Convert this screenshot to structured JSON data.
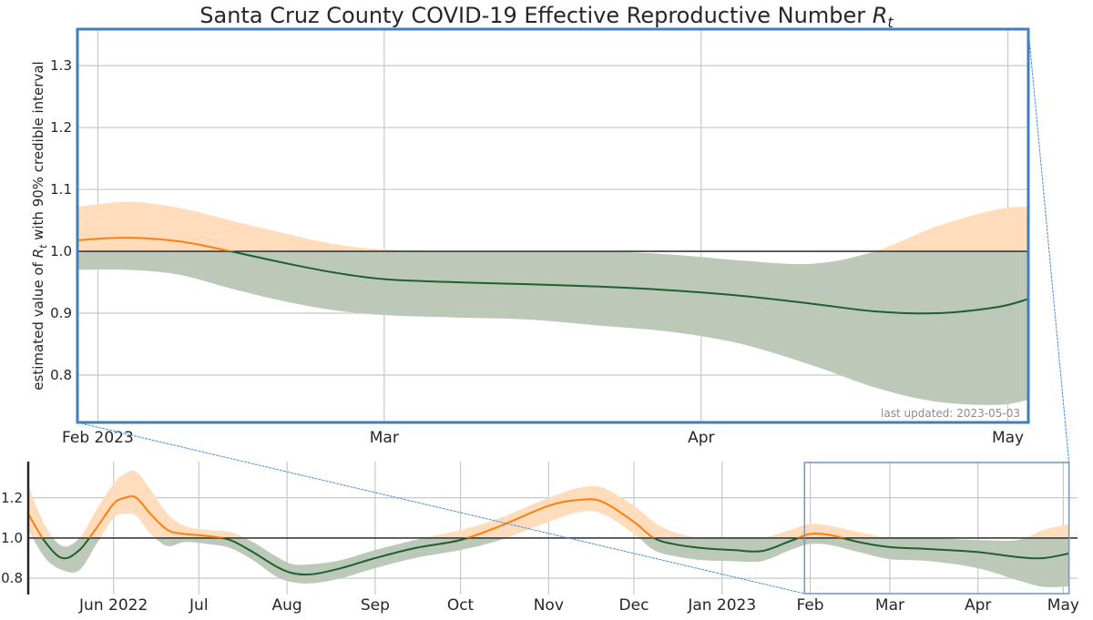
{
  "chart_data": [
    {
      "id": "detail",
      "type": "area",
      "title": "Santa Cruz County COVID-19 Effective Reproductive Number",
      "title_math": "R",
      "title_math_sub": "t",
      "ylabel_prefix": "estimated value of ",
      "ylabel_math": "R",
      "ylabel_math_sub": "t",
      "ylabel_suffix": " with 90% credible interval",
      "annotation": "last updated: 2023-05-03",
      "xlim": [
        "2023-01-30",
        "2023-05-03"
      ],
      "ylim": [
        0.7235,
        1.359
      ],
      "yticks": [
        0.8,
        0.9,
        1.0,
        1.1,
        1.2,
        1.3
      ],
      "ytick_labels": [
        "0.8",
        "0.9",
        "1.0",
        "1.1",
        "1.2",
        "1.3"
      ],
      "xticks": [
        {
          "date": "2023-02-01",
          "label": "Feb 2023"
        },
        {
          "date": "2023-03-01",
          "label": "Mar"
        },
        {
          "date": "2023-04-01",
          "label": "Apr"
        },
        {
          "date": "2023-05-01",
          "label": "May"
        }
      ],
      "reference_line": 1.0,
      "grid": true,
      "series": [
        {
          "name": "Rt median",
          "x": [
            "2023-01-30",
            "2023-02-04",
            "2023-02-09",
            "2023-02-14",
            "2023-02-19",
            "2023-02-24",
            "2023-03-01",
            "2023-03-08",
            "2023-03-15",
            "2023-03-22",
            "2023-03-29",
            "2023-04-05",
            "2023-04-12",
            "2023-04-18",
            "2023-04-24",
            "2023-04-30",
            "2023-05-03"
          ],
          "y": [
            1.018,
            1.022,
            1.016,
            1.0,
            0.982,
            0.966,
            0.955,
            0.95,
            0.947,
            0.943,
            0.937,
            0.928,
            0.915,
            0.903,
            0.9,
            0.91,
            0.923
          ]
        },
        {
          "name": "90% CI upper",
          "x": [
            "2023-01-30",
            "2023-02-04",
            "2023-02-09",
            "2023-02-14",
            "2023-02-19",
            "2023-02-24",
            "2023-03-01",
            "2023-03-08",
            "2023-03-15",
            "2023-03-22",
            "2023-03-29",
            "2023-04-05",
            "2023-04-12",
            "2023-04-18",
            "2023-04-24",
            "2023-04-30",
            "2023-05-03"
          ],
          "y": [
            1.072,
            1.08,
            1.07,
            1.05,
            1.03,
            1.012,
            1.003,
            1.0,
            1.0,
            1.0,
            0.995,
            0.985,
            0.98,
            1.0,
            1.04,
            1.068,
            1.072
          ]
        },
        {
          "name": "90% CI lower",
          "x": [
            "2023-01-30",
            "2023-02-04",
            "2023-02-09",
            "2023-02-14",
            "2023-02-19",
            "2023-02-24",
            "2023-03-01",
            "2023-03-08",
            "2023-03-15",
            "2023-03-22",
            "2023-03-29",
            "2023-04-05",
            "2023-04-12",
            "2023-04-18",
            "2023-04-24",
            "2023-04-30",
            "2023-05-03"
          ],
          "y": [
            0.97,
            0.97,
            0.962,
            0.94,
            0.92,
            0.905,
            0.897,
            0.893,
            0.89,
            0.88,
            0.87,
            0.85,
            0.815,
            0.78,
            0.757,
            0.752,
            0.76
          ]
        }
      ],
      "colors": {
        "above": "#ff7f0e",
        "below": "#1f5f32",
        "above_band": "#ffdcbc",
        "below_band": "#bcc9b8",
        "frame": "#3f7fbf"
      }
    },
    {
      "id": "overview",
      "type": "area",
      "xlim": [
        "2022-05-02",
        "2023-05-06"
      ],
      "ylim": [
        0.719,
        1.38
      ],
      "yticks": [
        0.8,
        1.0,
        1.2
      ],
      "ytick_labels": [
        "0.8",
        "1.0",
        "1.2"
      ],
      "xticks": [
        {
          "date": "2022-06-01",
          "label": "Jun 2022"
        },
        {
          "date": "2022-07-01",
          "label": "Jul"
        },
        {
          "date": "2022-08-01",
          "label": "Aug"
        },
        {
          "date": "2022-09-01",
          "label": "Sep"
        },
        {
          "date": "2022-10-01",
          "label": "Oct"
        },
        {
          "date": "2022-11-01",
          "label": "Nov"
        },
        {
          "date": "2022-12-01",
          "label": "Dec"
        },
        {
          "date": "2023-01-01",
          "label": "Jan 2023"
        },
        {
          "date": "2023-02-01",
          "label": "Feb"
        },
        {
          "date": "2023-03-01",
          "label": "Mar"
        },
        {
          "date": "2023-04-01",
          "label": "Apr"
        },
        {
          "date": "2023-05-01",
          "label": "May"
        }
      ],
      "reference_line": 1.0,
      "zoom_window": [
        "2023-01-30",
        "2023-05-03"
      ],
      "series": [
        {
          "name": "Rt median",
          "x": [
            "2022-05-02",
            "2022-05-08",
            "2022-05-14",
            "2022-05-20",
            "2022-05-26",
            "2022-06-01",
            "2022-06-05",
            "2022-06-09",
            "2022-06-14",
            "2022-06-20",
            "2022-06-26",
            "2022-07-04",
            "2022-07-12",
            "2022-07-20",
            "2022-07-28",
            "2022-08-03",
            "2022-08-10",
            "2022-08-20",
            "2022-09-01",
            "2022-09-15",
            "2022-10-01",
            "2022-10-15",
            "2022-11-01",
            "2022-11-12",
            "2022-11-20",
            "2022-12-01",
            "2022-12-08",
            "2022-12-15",
            "2022-12-25",
            "2023-01-05",
            "2023-01-15",
            "2023-01-25",
            "2023-02-01",
            "2023-02-08",
            "2023-02-18",
            "2023-03-01",
            "2023-03-15",
            "2023-04-01",
            "2023-04-15",
            "2023-04-24",
            "2023-05-03"
          ],
          "y": [
            1.12,
            0.98,
            0.9,
            0.94,
            1.05,
            1.17,
            1.2,
            1.2,
            1.12,
            1.04,
            1.02,
            1.01,
            0.99,
            0.93,
            0.86,
            0.825,
            0.82,
            0.85,
            0.9,
            0.95,
            0.99,
            1.06,
            1.16,
            1.19,
            1.18,
            1.08,
            1.0,
            0.97,
            0.95,
            0.94,
            0.935,
            0.985,
            1.02,
            1.015,
            0.98,
            0.955,
            0.945,
            0.93,
            0.905,
            0.9,
            0.923
          ]
        },
        {
          "name": "90% CI upper",
          "x": [
            "2022-05-02",
            "2022-05-08",
            "2022-05-14",
            "2022-05-20",
            "2022-05-26",
            "2022-06-01",
            "2022-06-05",
            "2022-06-09",
            "2022-06-14",
            "2022-06-20",
            "2022-06-26",
            "2022-07-04",
            "2022-07-12",
            "2022-07-20",
            "2022-07-28",
            "2022-08-03",
            "2022-08-10",
            "2022-08-20",
            "2022-09-01",
            "2022-09-15",
            "2022-10-01",
            "2022-10-15",
            "2022-11-01",
            "2022-11-12",
            "2022-11-20",
            "2022-12-01",
            "2022-12-08",
            "2022-12-15",
            "2022-12-25",
            "2023-01-05",
            "2023-01-15",
            "2023-01-25",
            "2023-02-01",
            "2023-02-08",
            "2023-02-18",
            "2023-03-01",
            "2023-03-15",
            "2023-04-01",
            "2023-04-15",
            "2023-04-24",
            "2023-05-03"
          ],
          "y": [
            1.26,
            1.06,
            0.96,
            1.0,
            1.14,
            1.27,
            1.32,
            1.33,
            1.24,
            1.12,
            1.06,
            1.04,
            1.03,
            0.98,
            0.91,
            0.87,
            0.87,
            0.89,
            0.94,
            0.99,
            1.04,
            1.1,
            1.2,
            1.25,
            1.25,
            1.16,
            1.08,
            1.03,
            1.0,
            1.0,
            1.0,
            1.04,
            1.07,
            1.06,
            1.03,
            1.0,
            1.0,
            0.99,
            0.99,
            1.04,
            1.07
          ]
        },
        {
          "name": "90% CI lower",
          "x": [
            "2022-05-02",
            "2022-05-08",
            "2022-05-14",
            "2022-05-20",
            "2022-05-26",
            "2022-06-01",
            "2022-06-05",
            "2022-06-09",
            "2022-06-14",
            "2022-06-20",
            "2022-06-26",
            "2022-07-04",
            "2022-07-12",
            "2022-07-20",
            "2022-07-28",
            "2022-08-03",
            "2022-08-10",
            "2022-08-20",
            "2022-09-01",
            "2022-09-15",
            "2022-10-01",
            "2022-10-15",
            "2022-11-01",
            "2022-11-12",
            "2022-11-20",
            "2022-12-01",
            "2022-12-08",
            "2022-12-15",
            "2022-12-25",
            "2023-01-05",
            "2023-01-15",
            "2023-01-25",
            "2023-02-01",
            "2023-02-08",
            "2023-02-18",
            "2023-03-01",
            "2023-03-15",
            "2023-04-01",
            "2023-04-15",
            "2023-04-24",
            "2023-05-03"
          ],
          "y": [
            1.04,
            0.9,
            0.84,
            0.84,
            0.97,
            1.1,
            1.12,
            1.11,
            1.02,
            0.96,
            0.98,
            0.97,
            0.95,
            0.89,
            0.81,
            0.78,
            0.775,
            0.8,
            0.85,
            0.9,
            0.94,
            0.99,
            1.08,
            1.13,
            1.12,
            1.02,
            0.94,
            0.91,
            0.89,
            0.885,
            0.885,
            0.94,
            0.97,
            0.965,
            0.93,
            0.895,
            0.885,
            0.85,
            0.79,
            0.757,
            0.76
          ]
        }
      ],
      "colors": {
        "above": "#ff7f0e",
        "below": "#1f5f32",
        "above_band": "#ffdcbc",
        "below_band": "#bcc9b8",
        "zoom_box": "#6a97cc",
        "connector": "#4a8fd8"
      }
    }
  ]
}
